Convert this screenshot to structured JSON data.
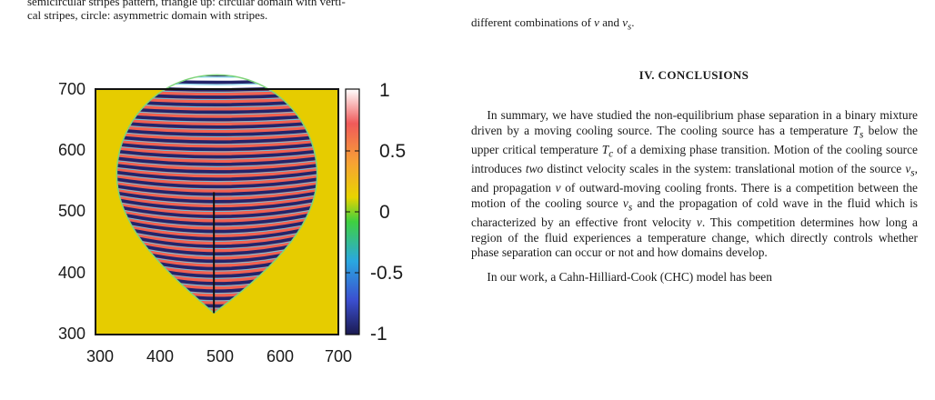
{
  "top_caption_left": {
    "line1": "semicircular stripes pattern, triangle up: circular domain with verti-",
    "line2": "cal stripes, circle: asymmetric domain with stripes."
  },
  "top_caption_right": {
    "text": "different combinations of v and v_s."
  },
  "section": {
    "title": "IV.   CONCLUSIONS"
  },
  "paragraphs": [
    "In summary, we have studied the non-equilibrium phase separation in a binary mixture driven by a moving cooling source. The cooling source has a temperature T_s below the upper critical temperature T_c of a demixing phase transition. Motion of the cooling source introduces two distinct velocity scales in the system: translational motion of the source v_s, and propagation v of outward-moving cooling fronts. There is a competition between the motion of the cooling source v_s and the propagation of cold wave in the fluid which is characterized by an effective front velocity v. This competition determines how long a region of the fluid experiences a temperature change, which directly controls whether phase separation can occur or not and how domains develop.",
    "In our work, a Cahn-Hilliard-Cook (CHC) model has been"
  ],
  "chart_data": {
    "type": "heatmap",
    "title": "",
    "xlabel": "",
    "ylabel": "",
    "xlim": [
      300,
      700
    ],
    "ylim": [
      300,
      700
    ],
    "x_ticks": [
      "300",
      "400",
      "500",
      "600",
      "700"
    ],
    "y_ticks": [
      "300",
      "400",
      "500",
      "600",
      "700"
    ],
    "colorbar": {
      "range": [
        -1,
        1
      ],
      "ticks": [
        "1",
        "0.5",
        "0",
        "-0.5",
        "-1"
      ],
      "colors": [
        "#1b1a50",
        "#3b4fd0",
        "#2aa8e0",
        "#3fd040",
        "#e8d400",
        "#f7a234",
        "#f05a5a",
        "#ffffff"
      ]
    },
    "background_value": 0.25,
    "domain": {
      "shape": "teardrop",
      "circle_center": [
        500,
        560
      ],
      "circle_radius": 165,
      "tip": [
        495,
        335
      ],
      "pattern": "horizontal curved stripes alternating +1 / -1"
    },
    "vertical_line": {
      "x": 495,
      "y_range": [
        335,
        532
      ]
    }
  }
}
